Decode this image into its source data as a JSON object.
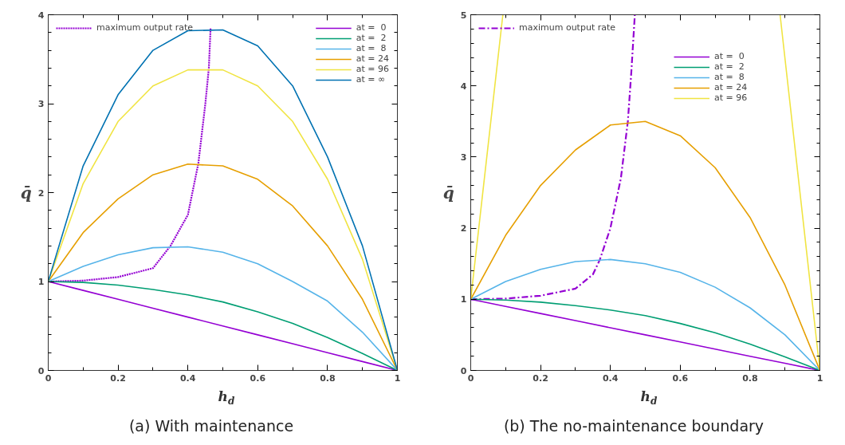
{
  "chart_data": [
    {
      "type": "line",
      "title": "(a) With maintenance",
      "xlabel": "h$_{d}$",
      "ylabel": "q̄",
      "xlim": [
        0,
        1
      ],
      "ylim": [
        0,
        4
      ],
      "xticks": [
        0,
        0.2,
        0.4,
        0.6,
        0.8,
        1
      ],
      "yticks": [
        0,
        1,
        2,
        3,
        4
      ],
      "grid": false,
      "legend": "top right",
      "x": [
        0,
        0.1,
        0.2,
        0.3,
        0.4,
        0.5,
        0.6,
        0.7,
        0.8,
        0.9,
        1
      ],
      "series": [
        {
          "name": "maximum output rate",
          "color": "#9400d3",
          "line_style": "dotted",
          "x": [
            0,
            0.1,
            0.2,
            0.3,
            0.35,
            0.4,
            0.43,
            0.45,
            0.46,
            0.465
          ],
          "values": [
            1,
            1.01,
            1.05,
            1.15,
            1.4,
            1.75,
            2.33,
            3.0,
            3.4,
            3.85
          ]
        },
        {
          "name": "at =  0",
          "color": "#9400d3",
          "values": [
            1,
            0.9,
            0.8,
            0.7,
            0.6,
            0.5,
            0.4,
            0.3,
            0.2,
            0.1,
            0
          ]
        },
        {
          "name": "at =  2",
          "color": "#009e73",
          "values": [
            1,
            0.99,
            0.96,
            0.91,
            0.85,
            0.77,
            0.66,
            0.53,
            0.37,
            0.19,
            0
          ]
        },
        {
          "name": "at =  8",
          "color": "#56b4e9",
          "values": [
            1,
            1.17,
            1.3,
            1.38,
            1.39,
            1.33,
            1.2,
            1.0,
            0.78,
            0.43,
            0
          ]
        },
        {
          "name": "at = 24",
          "color": "#e69f00",
          "values": [
            1,
            1.55,
            1.93,
            2.2,
            2.32,
            2.3,
            2.15,
            1.85,
            1.4,
            0.8,
            0
          ]
        },
        {
          "name": "at = 96",
          "color": "#f0e442",
          "values": [
            1,
            2.1,
            2.8,
            3.2,
            3.38,
            3.38,
            3.2,
            2.8,
            2.15,
            1.25,
            0
          ]
        },
        {
          "name": "at = ∞",
          "color": "#0072b2",
          "values": [
            1,
            2.3,
            3.1,
            3.6,
            3.82,
            3.83,
            3.65,
            3.2,
            2.4,
            1.4,
            0
          ]
        }
      ]
    },
    {
      "type": "line",
      "title": "(b) The no-maintenance boundary",
      "xlabel": "h$_{d}$",
      "ylabel": "q̄",
      "xlim": [
        0,
        1
      ],
      "ylim": [
        0,
        5
      ],
      "xticks": [
        0,
        0.2,
        0.4,
        0.6,
        0.8,
        1
      ],
      "yticks": [
        0,
        1,
        2,
        3,
        4,
        5
      ],
      "grid": false,
      "legend": "top",
      "x": [
        0,
        0.1,
        0.2,
        0.3,
        0.4,
        0.5,
        0.6,
        0.7,
        0.8,
        0.9,
        1
      ],
      "series": [
        {
          "name": "maximum output rate",
          "color": "#9400d3",
          "line_style": "dashdot",
          "x": [
            0,
            0.1,
            0.2,
            0.3,
            0.35,
            0.37,
            0.4,
            0.43,
            0.45,
            0.46,
            0.47
          ],
          "values": [
            1,
            1.01,
            1.05,
            1.15,
            1.35,
            1.56,
            2.0,
            2.7,
            3.5,
            4.2,
            5.0
          ]
        },
        {
          "name": "at =  0",
          "color": "#9400d3",
          "values": [
            1,
            0.9,
            0.8,
            0.7,
            0.6,
            0.5,
            0.4,
            0.3,
            0.2,
            0.1,
            0
          ]
        },
        {
          "name": "at =  2",
          "color": "#009e73",
          "values": [
            1,
            0.99,
            0.96,
            0.91,
            0.85,
            0.77,
            0.66,
            0.53,
            0.37,
            0.19,
            0
          ]
        },
        {
          "name": "at =  8",
          "color": "#56b4e9",
          "values": [
            1,
            1.25,
            1.42,
            1.53,
            1.56,
            1.5,
            1.38,
            1.17,
            0.88,
            0.5,
            0
          ]
        },
        {
          "name": "at = 24",
          "color": "#e69f00",
          "values": [
            1,
            1.9,
            2.6,
            3.1,
            3.45,
            3.5,
            3.3,
            2.85,
            2.15,
            1.2,
            0
          ]
        },
        {
          "name": "at = 96",
          "color": "#f0e442",
          "x": [
            0,
            0.092,
            null,
            0.886,
            1
          ],
          "values": [
            1,
            5,
            null,
            5,
            0
          ]
        }
      ]
    }
  ]
}
